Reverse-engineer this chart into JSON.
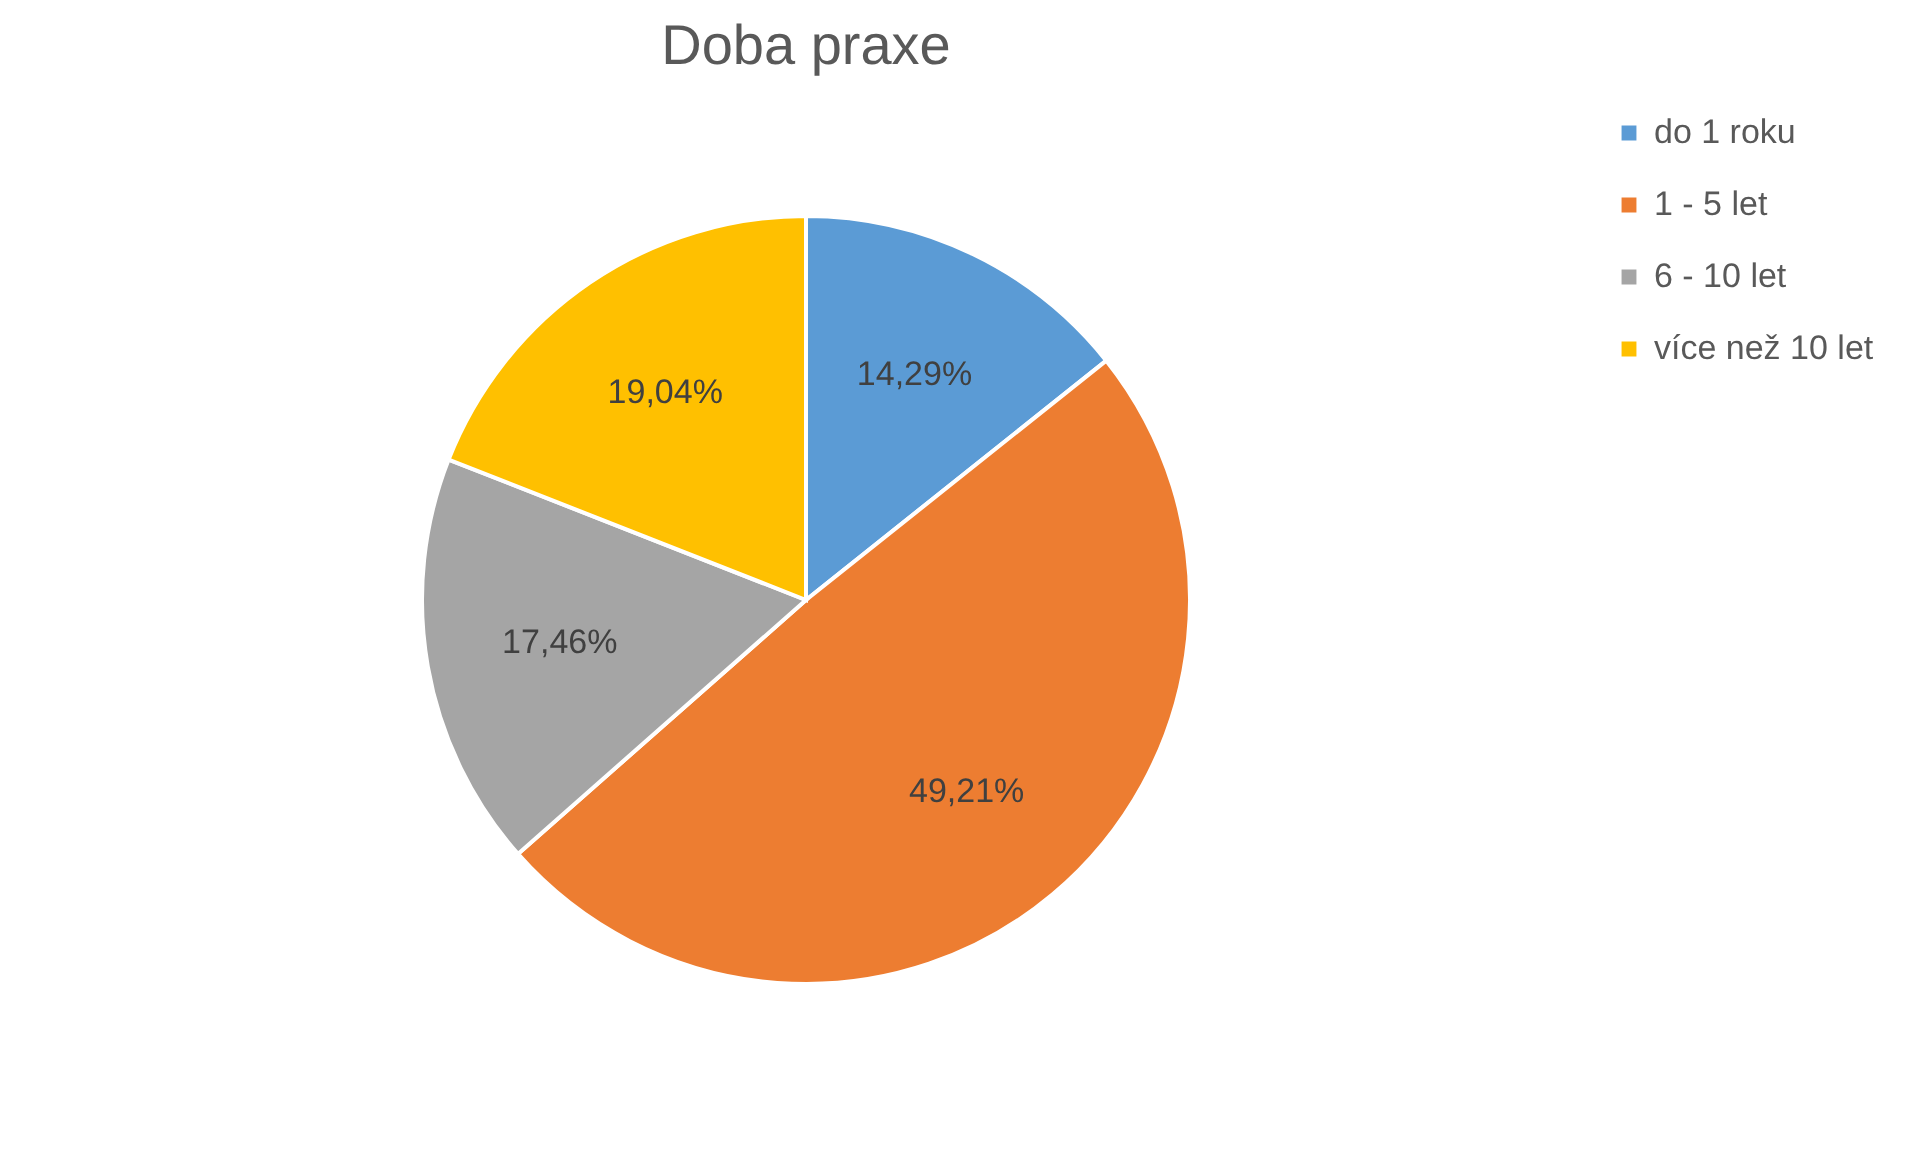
{
  "chart_data": {
    "type": "pie",
    "title": "Doba praxe",
    "categories": [
      "do 1 roku",
      "1 - 5 let",
      "6 - 10 let",
      "více než 10 let"
    ],
    "values": [
      14.29,
      49.21,
      17.46,
      19.04
    ],
    "value_labels": [
      "14,29%",
      "49,21%",
      "17,46%",
      "19,04%"
    ],
    "colors": [
      "#5b9bd5",
      "#ed7d31",
      "#a5a5a5",
      "#ffc000"
    ],
    "legend": "right"
  }
}
